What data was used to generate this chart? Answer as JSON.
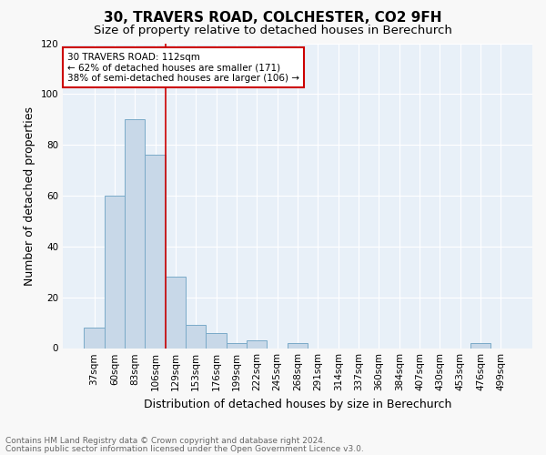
{
  "title": "30, TRAVERS ROAD, COLCHESTER, CO2 9FH",
  "subtitle": "Size of property relative to detached houses in Berechurch",
  "xlabel": "Distribution of detached houses by size in Berechurch",
  "ylabel": "Number of detached properties",
  "bar_labels": [
    "37sqm",
    "60sqm",
    "83sqm",
    "106sqm",
    "129sqm",
    "153sqm",
    "176sqm",
    "199sqm",
    "222sqm",
    "245sqm",
    "268sqm",
    "291sqm",
    "314sqm",
    "337sqm",
    "360sqm",
    "384sqm",
    "407sqm",
    "430sqm",
    "453sqm",
    "476sqm",
    "499sqm"
  ],
  "bar_values": [
    8,
    60,
    90,
    76,
    28,
    9,
    6,
    2,
    3,
    0,
    2,
    0,
    0,
    0,
    0,
    0,
    0,
    0,
    0,
    2,
    0
  ],
  "bar_color": "#c8d8e8",
  "bar_edgecolor": "#7aaac8",
  "background_color": "#e8f0f8",
  "grid_color": "#ffffff",
  "vline_index": 3,
  "vline_color": "#cc0000",
  "annotation_title": "30 TRAVERS ROAD: 112sqm",
  "annotation_line1": "← 62% of detached houses are smaller (171)",
  "annotation_line2": "38% of semi-detached houses are larger (106) →",
  "annotation_box_color": "#ffffff",
  "annotation_box_edgecolor": "#cc0000",
  "ylim": [
    0,
    120
  ],
  "yticks": [
    0,
    20,
    40,
    60,
    80,
    100,
    120
  ],
  "footnote1": "Contains HM Land Registry data © Crown copyright and database right 2024.",
  "footnote2": "Contains public sector information licensed under the Open Government Licence v3.0.",
  "title_fontsize": 11,
  "subtitle_fontsize": 9.5,
  "xlabel_fontsize": 9,
  "ylabel_fontsize": 9,
  "tick_fontsize": 7.5,
  "annotation_fontsize": 7.5,
  "footnote_fontsize": 6.5
}
